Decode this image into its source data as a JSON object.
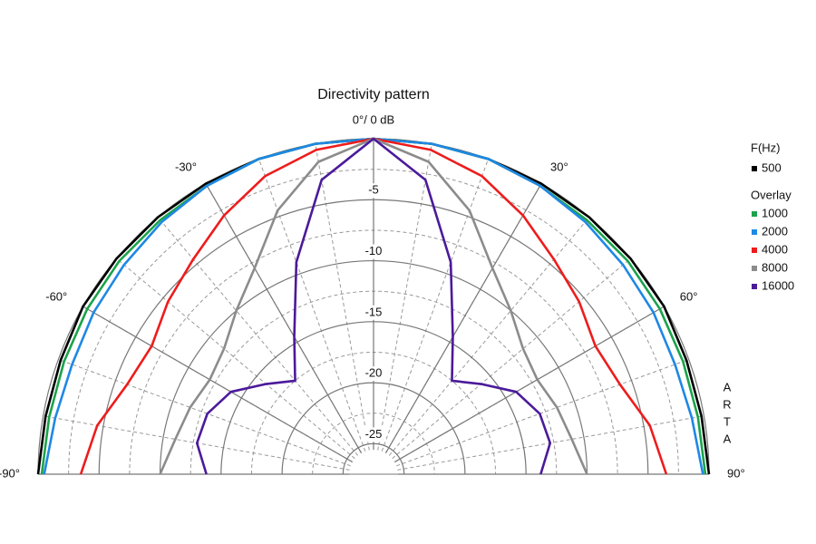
{
  "chart_data": {
    "type": "polar",
    "title": "Directivity pattern",
    "theta": [
      -90,
      -80,
      -70,
      -60,
      -50,
      -40,
      -30,
      -20,
      -10,
      0,
      10,
      20,
      30,
      40,
      50,
      60,
      70,
      80,
      90
    ],
    "thetalim": [
      -90,
      90
    ],
    "thetaticks": [
      {
        "value": -90,
        "label": "-90°"
      },
      {
        "value": -60,
        "label": "-60°"
      },
      {
        "value": -30,
        "label": "-30°"
      },
      {
        "value": 0,
        "label": "0°/ 0 dB"
      },
      {
        "value": 30,
        "label": "30°"
      },
      {
        "value": 60,
        "label": "60°"
      },
      {
        "value": 90,
        "label": "90°"
      }
    ],
    "rlim": [
      -27.5,
      0
    ],
    "rticks": [
      -25,
      -20,
      -15,
      -10,
      -5
    ],
    "legend_title": "F(Hz)",
    "overlay_label": "Overlay",
    "watermark": "ARTA",
    "series": [
      {
        "name": "500",
        "color": "#000000",
        "values": [
          0,
          -0.2,
          -0.2,
          0,
          0,
          0,
          0,
          0,
          0,
          0,
          0,
          0,
          0,
          0,
          0,
          0,
          -0.2,
          -0.2,
          0
        ]
      },
      {
        "name": "1000",
        "color": "#1aa34a",
        "values": [
          -0.3,
          -0.5,
          -0.5,
          -0.4,
          -0.3,
          -0.3,
          -0.2,
          0,
          0,
          0,
          0,
          0,
          -0.2,
          -0.3,
          -0.3,
          -0.4,
          -0.5,
          -0.5,
          -0.3
        ]
      },
      {
        "name": "2000",
        "color": "#1e88e5",
        "values": [
          -0.5,
          -1,
          -1.2,
          -1,
          -0.8,
          -0.5,
          -0.2,
          0,
          0,
          0,
          0,
          0,
          -0.2,
          -0.5,
          -0.8,
          -1,
          -1.2,
          -1,
          -0.5
        ]
      },
      {
        "name": "4000",
        "color": "#ee1c1c",
        "values": [
          -3.5,
          -4.5,
          -6,
          -6.5,
          -5.5,
          -4.5,
          -3,
          -1.5,
          -0.5,
          0,
          -0.5,
          -1.5,
          -3,
          -4.5,
          -5.5,
          -6.5,
          -6,
          -4.5,
          -3.5
        ]
      },
      {
        "name": "8000",
        "color": "#8c8c8c",
        "values": [
          -10,
          -11,
          -11.5,
          -12,
          -11.5,
          -10,
          -8,
          -4.5,
          -1.5,
          0,
          -1.5,
          -4.5,
          -8,
          -10,
          -11.5,
          -12,
          -11.5,
          -11,
          -10
        ]
      },
      {
        "name": "16000",
        "color": "#4b1a9a",
        "values": [
          -13.8,
          -12.8,
          -13,
          -14,
          -16,
          -17.5,
          -14.5,
          -9,
          -3,
          0,
          -3,
          -9,
          -14.5,
          -17.5,
          -16,
          -14,
          -13,
          -12.8,
          -13.8
        ]
      }
    ]
  }
}
